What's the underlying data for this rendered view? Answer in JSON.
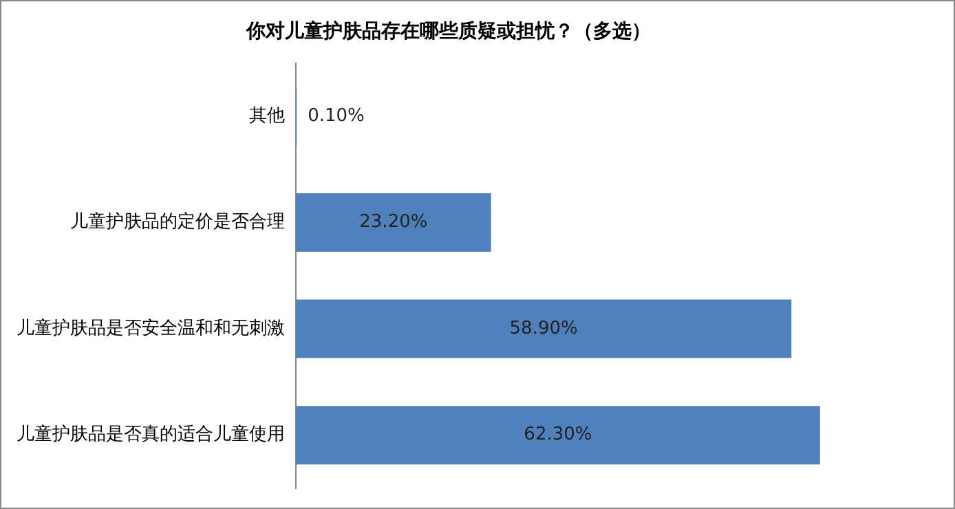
{
  "chart_data": {
    "type": "bar",
    "orientation": "horizontal",
    "title": "你对儿童护肤品存在哪些质疑或担忧？（多选）",
    "categories": [
      "其他",
      "儿童护肤品的定价是否合理",
      "儿童护肤品是否安全温和和无刺激",
      "儿童护肤品是否真的适合儿童使用"
    ],
    "values": [
      0.1,
      23.2,
      58.9,
      62.3
    ],
    "value_labels": [
      "0.10%",
      "23.20%",
      "58.90%",
      "62.30%"
    ],
    "color": "#4f81bd",
    "grid": false,
    "legend": false
  }
}
